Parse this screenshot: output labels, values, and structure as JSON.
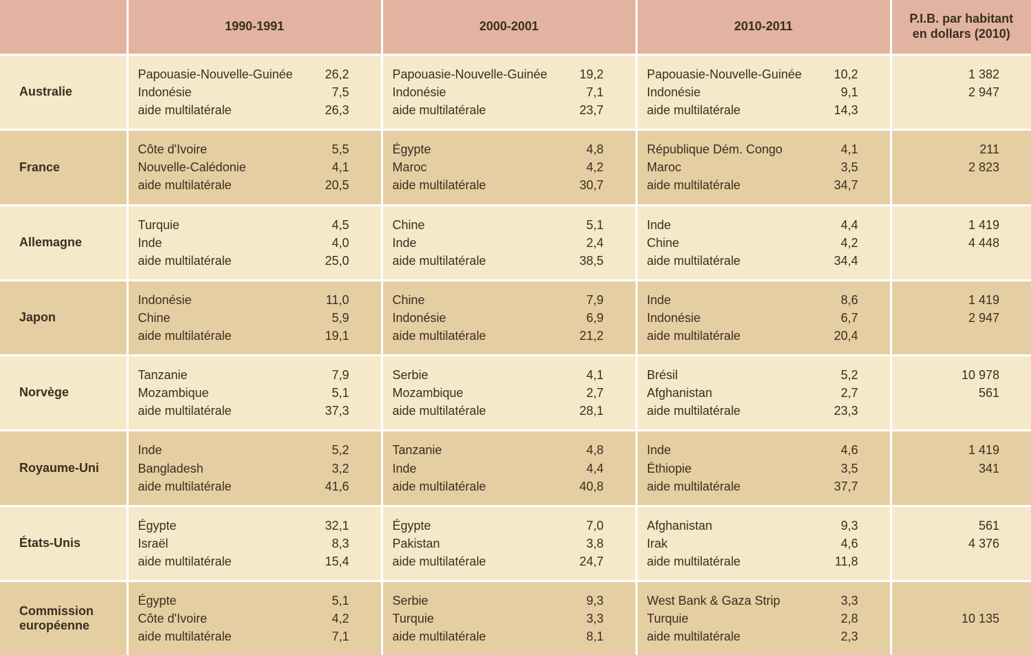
{
  "type": "table",
  "colors": {
    "header_bg": "#e2b3a1",
    "row_odd_bg": "#f5e9c9",
    "row_even_bg": "#e6cea3",
    "divider": "#ffffff",
    "text": "#3a2e1f"
  },
  "header": {
    "periods": [
      "1990-1991",
      "2000-2001",
      "2010-2011"
    ],
    "pib": "P.I.B. par habitant\nen dollars (2010)"
  },
  "countries": [
    {
      "name": "Australie",
      "periods": [
        [
          {
            "label": "Papouasie-Nouvelle-Guinée",
            "value": "26,2"
          },
          {
            "label": "Indonésie",
            "value": "7,5"
          },
          {
            "label": "aide multilatérale",
            "value": "26,3"
          }
        ],
        [
          {
            "label": "Papouasie-Nouvelle-Guinée",
            "value": "19,2"
          },
          {
            "label": "Indonésie",
            "value": "7,1"
          },
          {
            "label": "aide multilatérale",
            "value": "23,7"
          }
        ],
        [
          {
            "label": "Papouasie-Nouvelle-Guinée",
            "value": "10,2"
          },
          {
            "label": "Indonésie",
            "value": "9,1"
          },
          {
            "label": "aide multilatérale",
            "value": "14,3"
          }
        ]
      ],
      "pib": [
        "1 382",
        "2 947",
        ""
      ]
    },
    {
      "name": "France",
      "periods": [
        [
          {
            "label": "Côte d'Ivoire",
            "value": "5,5"
          },
          {
            "label": "Nouvelle-Calédonie",
            "value": "4,1"
          },
          {
            "label": "aide multilatérale",
            "value": "20,5"
          }
        ],
        [
          {
            "label": "Égypte",
            "value": "4,8"
          },
          {
            "label": "Maroc",
            "value": "4,2"
          },
          {
            "label": "aide multilatérale",
            "value": "30,7"
          }
        ],
        [
          {
            "label": "République Dém. Congo",
            "value": "4,1"
          },
          {
            "label": "Maroc",
            "value": "3,5"
          },
          {
            "label": "aide multilatérale",
            "value": "34,7"
          }
        ]
      ],
      "pib": [
        "211",
        "2 823",
        ""
      ]
    },
    {
      "name": "Allemagne",
      "periods": [
        [
          {
            "label": "Turquie",
            "value": "4,5"
          },
          {
            "label": "Inde",
            "value": "4,0"
          },
          {
            "label": "aide multilatérale",
            "value": "25,0"
          }
        ],
        [
          {
            "label": "Chine",
            "value": "5,1"
          },
          {
            "label": "Inde",
            "value": "2,4"
          },
          {
            "label": "aide multilatérale",
            "value": "38,5"
          }
        ],
        [
          {
            "label": "Inde",
            "value": "4,4"
          },
          {
            "label": "Chine",
            "value": "4,2"
          },
          {
            "label": "aide multilatérale",
            "value": "34,4"
          }
        ]
      ],
      "pib": [
        "1 419",
        "4 448",
        ""
      ]
    },
    {
      "name": "Japon",
      "periods": [
        [
          {
            "label": "Indonésie",
            "value": "11,0"
          },
          {
            "label": "Chine",
            "value": "5,9"
          },
          {
            "label": "aide multilatérale",
            "value": "19,1"
          }
        ],
        [
          {
            "label": "Chine",
            "value": "7,9"
          },
          {
            "label": "Indonésie",
            "value": "6,9"
          },
          {
            "label": "aide multilatérale",
            "value": "21,2"
          }
        ],
        [
          {
            "label": "Inde",
            "value": "8,6"
          },
          {
            "label": "Indonésie",
            "value": "6,7"
          },
          {
            "label": "aide multilatérale",
            "value": "20,4"
          }
        ]
      ],
      "pib": [
        "1 419",
        "2 947",
        ""
      ]
    },
    {
      "name": "Norvège",
      "periods": [
        [
          {
            "label": "Tanzanie",
            "value": "7,9"
          },
          {
            "label": "Mozambique",
            "value": "5,1"
          },
          {
            "label": "aide multilatérale",
            "value": "37,3"
          }
        ],
        [
          {
            "label": "Serbie",
            "value": "4,1"
          },
          {
            "label": "Mozambique",
            "value": "2,7"
          },
          {
            "label": "aide multilatérale",
            "value": "28,1"
          }
        ],
        [
          {
            "label": "Brésil",
            "value": "5,2"
          },
          {
            "label": "Afghanistan",
            "value": "2,7"
          },
          {
            "label": "aide multilatérale",
            "value": "23,3"
          }
        ]
      ],
      "pib": [
        "10 978",
        "561",
        ""
      ]
    },
    {
      "name": "Royaume-Uni",
      "periods": [
        [
          {
            "label": "Inde",
            "value": "5,2"
          },
          {
            "label": "Bangladesh",
            "value": "3,2"
          },
          {
            "label": "aide multilatérale",
            "value": "41,6"
          }
        ],
        [
          {
            "label": "Tanzanie",
            "value": "4,8"
          },
          {
            "label": "Inde",
            "value": "4,4"
          },
          {
            "label": "aide multilatérale",
            "value": "40,8"
          }
        ],
        [
          {
            "label": "Inde",
            "value": "4,6"
          },
          {
            "label": "Éthiopie",
            "value": "3,5"
          },
          {
            "label": "aide multilatérale",
            "value": "37,7"
          }
        ]
      ],
      "pib": [
        "1 419",
        "341",
        ""
      ]
    },
    {
      "name": "États-Unis",
      "periods": [
        [
          {
            "label": "Égypte",
            "value": "32,1"
          },
          {
            "label": "Israël",
            "value": "8,3"
          },
          {
            "label": "aide multilatérale",
            "value": "15,4"
          }
        ],
        [
          {
            "label": "Égypte",
            "value": "7,0"
          },
          {
            "label": "Pakistan",
            "value": "3,8"
          },
          {
            "label": "aide multilatérale",
            "value": "24,7"
          }
        ],
        [
          {
            "label": "Afghanistan",
            "value": "9,3"
          },
          {
            "label": "Irak",
            "value": "4,6"
          },
          {
            "label": "aide multilatérale",
            "value": "11,8"
          }
        ]
      ],
      "pib": [
        "561",
        "4 376",
        ""
      ]
    },
    {
      "name": "Commission\neuropéenne",
      "periods": [
        [
          {
            "label": "Égypte",
            "value": "5,1"
          },
          {
            "label": "Côte d'Ivoire",
            "value": "4,2"
          },
          {
            "label": "aide multilatérale",
            "value": "7,1"
          }
        ],
        [
          {
            "label": "Serbie",
            "value": "9,3"
          },
          {
            "label": "Turquie",
            "value": "3,3"
          },
          {
            "label": "aide multilatérale",
            "value": "8,1"
          }
        ],
        [
          {
            "label": "West Bank & Gaza Strip",
            "value": "3,3"
          },
          {
            "label": "Turquie",
            "value": "2,8"
          },
          {
            "label": "aide multilatérale",
            "value": "2,3"
          }
        ]
      ],
      "pib": [
        "",
        "10 135",
        ""
      ]
    }
  ]
}
